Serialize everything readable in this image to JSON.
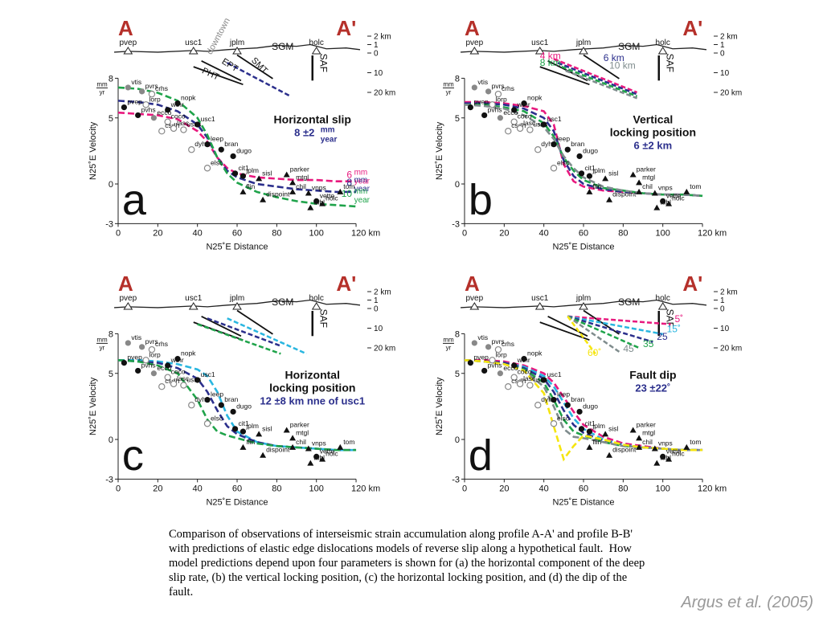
{
  "axes": {
    "xlim": [
      0,
      120
    ],
    "xticks": [
      0,
      20,
      40,
      60,
      80,
      100,
      {
        "value": 120,
        "label": "120 km"
      }
    ],
    "ylim": [
      -3,
      8
    ],
    "yticks": [
      -3,
      0,
      5,
      8
    ],
    "xlabel": "N25˚E Distance",
    "ylabel": "N25˚E Velocity",
    "yunit": [
      "mm",
      "yr"
    ],
    "model_x": [
      0,
      10,
      20,
      30,
      40,
      45,
      50,
      55,
      60,
      70,
      80,
      90,
      100,
      110,
      120
    ]
  },
  "section": {
    "start": "A",
    "end": "A'",
    "stations": [
      {
        "name": "pvep",
        "x": 5
      },
      {
        "name": "usc1",
        "x": 38
      },
      {
        "name": "jplm",
        "x": 60
      },
      {
        "name": "holc",
        "x": 100
      }
    ],
    "ticks": [
      {
        "value": 2,
        "label": "2 km"
      },
      1,
      0,
      {
        "value": -10,
        "label": "10"
      },
      {
        "value": -20,
        "label": "20 km"
      }
    ],
    "labels": [
      "SGM",
      "SAF"
    ]
  },
  "observations": [
    {
      "name": "vtis",
      "x": 5,
      "y": 7.3,
      "marker": "gray"
    },
    {
      "name": "pvrs",
      "x": 12,
      "y": 7.0,
      "marker": "gray"
    },
    {
      "name": "crhs",
      "x": 17,
      "y": 6.8,
      "marker": "open"
    },
    {
      "name": "pvep",
      "x": 3,
      "y": 5.8,
      "marker": "filled"
    },
    {
      "name": "lorp",
      "x": 14,
      "y": 6.0,
      "marker": "open"
    },
    {
      "name": "wthr",
      "x": 25,
      "y": 5.6,
      "marker": "filled"
    },
    {
      "name": "nopk",
      "x": 30,
      "y": 6.1,
      "marker": "filled"
    },
    {
      "name": "ecco",
      "x": 18,
      "y": 5.0,
      "marker": "gray"
    },
    {
      "name": "coco",
      "x": 25,
      "y": 4.7,
      "marker": "open"
    },
    {
      "name": "pvhs",
      "x": 10,
      "y": 5.2,
      "marker": "filled"
    },
    {
      "name": "csdh",
      "x": 22,
      "y": 4.0,
      "marker": "open"
    },
    {
      "name": "lasc",
      "x": 28,
      "y": 4.2,
      "marker": "open"
    },
    {
      "name": "usns",
      "x": 33,
      "y": 4.1,
      "marker": "open"
    },
    {
      "name": "usc1",
      "x": 40,
      "y": 4.5,
      "marker": "filled"
    },
    {
      "name": "dyhs",
      "x": 37,
      "y": 2.6,
      "marker": "open"
    },
    {
      "name": "leep",
      "x": 45,
      "y": 3.0,
      "marker": "filled"
    },
    {
      "name": "bran",
      "x": 52,
      "y": 2.6,
      "marker": "filled"
    },
    {
      "name": "elsc",
      "x": 45,
      "y": 1.2,
      "marker": "open"
    },
    {
      "name": "dugo",
      "x": 58,
      "y": 2.1,
      "marker": "filled"
    },
    {
      "name": "cit1",
      "x": 59,
      "y": 0.8,
      "marker": "filled"
    },
    {
      "name": "jplm",
      "x": 63,
      "y": 0.6,
      "marker": "filled"
    },
    {
      "name": "flin",
      "x": 63,
      "y": -0.6,
      "marker": "triangle"
    },
    {
      "name": "sisl",
      "x": 71,
      "y": 0.4,
      "marker": "triangle"
    },
    {
      "name": "dispoint",
      "x": 73,
      "y": -1.2,
      "marker": "triangle"
    },
    {
      "name": "parker",
      "x": 85,
      "y": 0.7,
      "marker": "triangle"
    },
    {
      "name": "mtgl",
      "x": 88,
      "y": 0.1,
      "marker": "triangle"
    },
    {
      "name": "chil",
      "x": 88,
      "y": -0.6,
      "marker": "triangle"
    },
    {
      "name": "vnps",
      "x": 96,
      "y": -0.7,
      "marker": "triangle"
    },
    {
      "name": "vette",
      "x": 100,
      "y": -1.3,
      "marker": "filled"
    },
    {
      "name": "tabl",
      "x": 97,
      "y": -1.8,
      "marker": "triangle"
    },
    {
      "name": "holc",
      "x": 103,
      "y": -1.5,
      "marker": "triangle"
    },
    {
      "name": "tom",
      "x": 112,
      "y": -0.6,
      "marker": "triangle"
    }
  ],
  "panels": [
    {
      "label": "a",
      "annotation": [
        "Horizontal slip",
        "8 ±2"
      ],
      "unit": [
        "mm",
        "year"
      ],
      "section_labels": [
        "downtown",
        "EPT",
        "SMT",
        "PHT"
      ],
      "series": [
        {
          "name": "6",
          "color": "#e8197e",
          "values": [
            5.4,
            5.3,
            5.2,
            4.9,
            4.0,
            3.2,
            2.0,
            1.2,
            0.8,
            0.5,
            0.4,
            0.3,
            0.3,
            0.2,
            0.2
          ]
        },
        {
          "name": "8",
          "color": "#2b2f8c",
          "values": [
            6.3,
            6.2,
            6.0,
            5.5,
            4.5,
            3.5,
            2.0,
            1.0,
            0.5,
            0.0,
            -0.2,
            -0.4,
            -0.5,
            -0.6,
            -0.6
          ]
        },
        {
          "name": "10",
          "color": "#1fa34a",
          "values": [
            7.3,
            7.2,
            6.9,
            6.3,
            5.0,
            3.7,
            2.0,
            0.8,
            0.1,
            -0.6,
            -1.0,
            -1.3,
            -1.5,
            -1.6,
            -1.7
          ]
        }
      ]
    },
    {
      "label": "b",
      "annotation": [
        "Vertical",
        "locking position",
        "6 ±2 km"
      ],
      "series": [
        {
          "name": "4 km",
          "color": "#e8197e",
          "values": [
            6.2,
            6.2,
            6.1,
            5.9,
            5.5,
            4.5,
            1.5,
            0.2,
            -0.2,
            -0.5,
            -0.6,
            -0.7,
            -0.8,
            -0.8,
            -0.9
          ]
        },
        {
          "name": "6 km",
          "color": "#2b2f8c",
          "values": [
            6.1,
            6.1,
            6.0,
            5.7,
            5.0,
            4.0,
            1.8,
            0.6,
            0.0,
            -0.4,
            -0.6,
            -0.7,
            -0.8,
            -0.8,
            -0.9
          ]
        },
        {
          "name": "8 km",
          "color": "#1fa34a",
          "values": [
            6.0,
            6.0,
            5.8,
            5.5,
            4.6,
            3.6,
            2.0,
            1.0,
            0.3,
            -0.3,
            -0.5,
            -0.7,
            -0.8,
            -0.8,
            -0.9
          ]
        },
        {
          "name": "10 km",
          "color": "#7f8c8d",
          "values": [
            6.0,
            5.9,
            5.7,
            5.2,
            4.3,
            3.4,
            2.1,
            1.2,
            0.5,
            -0.2,
            -0.5,
            -0.7,
            -0.8,
            -0.8,
            -0.9
          ]
        }
      ]
    },
    {
      "label": "c",
      "annotation": [
        "Horizontal",
        "locking position",
        "12 ±8 km nne of usc1"
      ],
      "series": [
        {
          "color": "#29b6e0",
          "values": [
            6.0,
            6.0,
            5.9,
            5.7,
            5.3,
            4.8,
            3.6,
            1.8,
            0.6,
            -0.2,
            -0.5,
            -0.6,
            -0.7,
            -0.8,
            -0.8
          ]
        },
        {
          "color": "#2b2f8c",
          "values": [
            6.0,
            5.9,
            5.8,
            5.4,
            4.6,
            3.6,
            2.2,
            1.0,
            0.4,
            -0.2,
            -0.5,
            -0.6,
            -0.7,
            -0.8,
            -0.8
          ]
        },
        {
          "color": "#1fa34a",
          "values": [
            6.0,
            5.9,
            5.6,
            5.0,
            3.0,
            1.5,
            0.6,
            0.3,
            0.1,
            -0.3,
            -0.5,
            -0.6,
            -0.7,
            -0.8,
            -0.8
          ]
        }
      ]
    },
    {
      "label": "d",
      "annotation": [
        "Fault dip",
        "23 ±22˚"
      ],
      "series": [
        {
          "name": "5˚",
          "color": "#e8197e",
          "values": [
            6.0,
            6.0,
            5.9,
            5.6,
            5.0,
            4.3,
            3.2,
            2.1,
            1.1,
            0.2,
            -0.3,
            -0.5,
            -0.7,
            -0.8,
            -0.8
          ]
        },
        {
          "name": "15˚",
          "color": "#29b6e0",
          "values": [
            6.0,
            5.9,
            5.8,
            5.5,
            4.8,
            4.0,
            2.8,
            1.6,
            0.8,
            0.0,
            -0.4,
            -0.6,
            -0.7,
            -0.8,
            -0.8
          ]
        },
        {
          "name": "25",
          "color": "#2b2f8c",
          "values": [
            6.0,
            5.9,
            5.8,
            5.4,
            4.6,
            3.6,
            2.2,
            1.1,
            0.5,
            -0.1,
            -0.4,
            -0.6,
            -0.7,
            -0.8,
            -0.8
          ]
        },
        {
          "name": "35",
          "color": "#1fa34a",
          "values": [
            6.0,
            5.9,
            5.7,
            5.3,
            4.3,
            3.0,
            1.5,
            0.6,
            0.3,
            -0.2,
            -0.5,
            -0.6,
            -0.7,
            -0.8,
            -0.8
          ]
        },
        {
          "name": "45",
          "color": "#7f8c8d",
          "values": [
            6.0,
            5.9,
            5.7,
            5.2,
            4.0,
            2.5,
            0.8,
            0.2,
            0.1,
            -0.2,
            -0.5,
            -0.6,
            -0.7,
            -0.8,
            -0.8
          ]
        },
        {
          "name": "60˚",
          "color": "#f5e50f",
          "values": [
            6.0,
            5.9,
            5.7,
            5.2,
            3.5,
            1.0,
            -1.5,
            -0.5,
            0.3,
            0.0,
            -0.4,
            -0.6,
            -0.7,
            -0.8,
            -0.8
          ]
        }
      ]
    }
  ],
  "caption": "Comparison of observations of interseismic strain accumulation along profile A-A' and profile B-B' with predictions of elastic edge dislocations models of reverse slip along a hypothetical fault.  How model predictions depend upon four parameters is shown for (a) the horizontal component of the deep slip rate, (b) the vertical locking position, (c) the horizontal locking position, and (d) the dip of the fault.",
  "citation": "Argus et al. (2005)"
}
